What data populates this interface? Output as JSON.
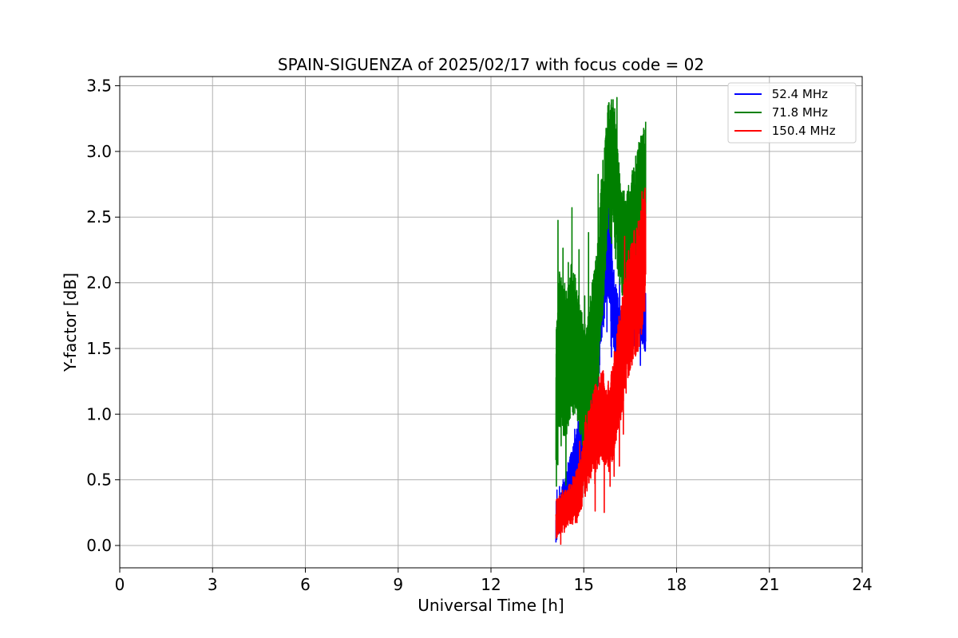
{
  "chart_data": {
    "type": "line",
    "title": "SPAIN-SIGUENZA of 2025/02/17 with focus code = 02",
    "xlabel": "Universal Time [h]",
    "ylabel": "Y-factor [dB]",
    "xlim": [
      0,
      24
    ],
    "ylim": [
      -0.17,
      3.57
    ],
    "xticks": [
      0,
      3,
      6,
      9,
      12,
      15,
      18,
      21,
      24
    ],
    "xtick_labels": [
      "0",
      "3",
      "6",
      "9",
      "12",
      "15",
      "18",
      "21",
      "24"
    ],
    "yticks": [
      0.0,
      0.5,
      1.0,
      1.5,
      2.0,
      2.5,
      3.0,
      3.5
    ],
    "ytick_labels": [
      "0.0",
      "0.5",
      "1.0",
      "1.5",
      "2.0",
      "2.5",
      "3.0",
      "3.5"
    ],
    "grid": true,
    "legend_position": "top-right",
    "series": [
      {
        "name": " 52.4 MHz",
        "color": "#0000ff",
        "x": [
          14.1,
          14.3,
          14.5,
          14.7,
          14.9,
          15.0,
          15.2,
          15.4,
          15.6,
          15.8,
          16.0,
          16.2,
          16.4,
          16.6,
          16.8,
          17.0
        ],
        "y": [
          0.15,
          0.3,
          0.45,
          0.6,
          0.8,
          0.9,
          1.1,
          1.35,
          2.0,
          2.3,
          1.7,
          1.5,
          1.7,
          1.8,
          1.9,
          1.7
        ],
        "amp": [
          0.15,
          0.15,
          0.18,
          0.2,
          0.25,
          0.25,
          0.3,
          0.35,
          0.4,
          0.4,
          0.35,
          0.3,
          0.3,
          0.3,
          0.3,
          0.25
        ]
      },
      {
        "name": " 71.8 MHz",
        "color": "#008000",
        "x": [
          14.1,
          14.2,
          14.4,
          14.6,
          14.8,
          15.0,
          15.2,
          15.4,
          15.6,
          15.8,
          16.0,
          16.2,
          16.4,
          16.6,
          16.8,
          17.0
        ],
        "y": [
          0.9,
          1.5,
          1.4,
          1.6,
          1.45,
          1.2,
          1.4,
          1.6,
          2.3,
          2.9,
          2.8,
          2.3,
          2.3,
          2.5,
          2.6,
          2.7
        ],
        "amp": [
          0.7,
          0.6,
          0.6,
          0.6,
          0.5,
          0.5,
          0.5,
          0.6,
          0.6,
          0.5,
          0.6,
          0.4,
          0.4,
          0.4,
          0.5,
          0.5
        ]
      },
      {
        "name": " 150.4 MHz",
        "color": "#ff0000",
        "x": [
          14.1,
          14.3,
          14.5,
          14.7,
          14.9,
          15.0,
          15.2,
          15.4,
          15.6,
          15.8,
          16.0,
          16.2,
          16.4,
          16.6,
          16.8,
          17.0
        ],
        "y": [
          0.2,
          0.25,
          0.3,
          0.35,
          0.45,
          0.6,
          0.8,
          0.9,
          1.0,
          0.9,
          1.1,
          1.4,
          1.7,
          1.9,
          2.0,
          2.3
        ],
        "amp": [
          0.15,
          0.15,
          0.15,
          0.2,
          0.2,
          0.25,
          0.3,
          0.35,
          0.35,
          0.35,
          0.4,
          0.45,
          0.5,
          0.5,
          0.5,
          0.5
        ]
      }
    ]
  }
}
